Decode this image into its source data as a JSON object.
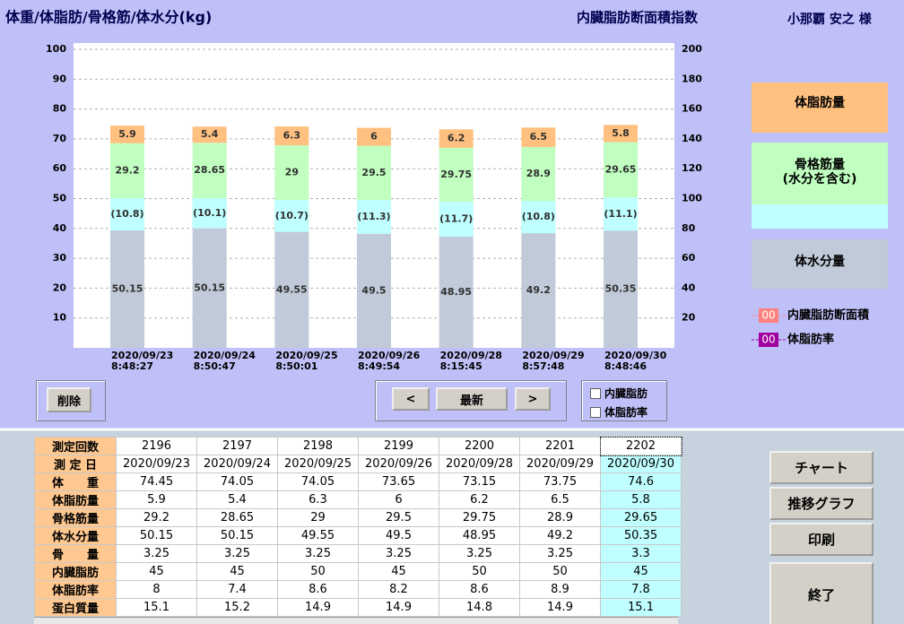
{
  "header": {
    "title": "体重/体脂肪/骨格筋/体水分(kg)",
    "subtitle": "内臓脂肪断面積指数",
    "user": "小那覇 安之 様"
  },
  "chart_data": {
    "type": "bar",
    "stacked": true,
    "categories": [
      "2020/09/23",
      "2020/09/24",
      "2020/09/25",
      "2020/09/26",
      "2020/09/28",
      "2020/09/29",
      "2020/09/30"
    ],
    "times": [
      "8:48:27",
      "8:50:47",
      "8:50:01",
      "8:49:54",
      "8:15:45",
      "8:57:48",
      "8:48:46"
    ],
    "series": [
      {
        "name": "体水分量",
        "color": "#c0cad8",
        "values": [
          50.15,
          50.15,
          49.55,
          49.5,
          48.95,
          49.2,
          50.35
        ]
      },
      {
        "name": "骨格筋量",
        "color": "#c0ffc0",
        "values": [
          29.2,
          28.65,
          29,
          29.5,
          29.75,
          28.9,
          29.65
        ]
      },
      {
        "name": "体脂肪量",
        "color": "#ffc080",
        "values": [
          5.9,
          5.4,
          6.3,
          6,
          6.2,
          6.5,
          5.8
        ]
      }
    ],
    "overlap": {
      "color": "#c0ffff",
      "values": [
        10.8,
        10.1,
        10.7,
        11.3,
        11.7,
        10.8,
        11.1
      ],
      "value_labels": [
        "(10.8)",
        "(10.1)",
        "(10.7)",
        "(11.3)",
        "(11.7)",
        "(10.8)",
        "(11.1)"
      ]
    },
    "legend_note": "(水分を含む)",
    "lines_legend": [
      {
        "name": "内臓脂肪断面積",
        "marker": "00",
        "color": "#ff8080"
      },
      {
        "name": "体脂肪率",
        "marker": "00",
        "color": "#a000a0"
      }
    ],
    "ylim": [
      0,
      100
    ],
    "yticks": [
      10,
      20,
      30,
      40,
      50,
      60,
      70,
      80,
      90,
      100
    ],
    "y2lim": [
      0,
      200
    ],
    "y2ticks": [
      20,
      40,
      60,
      80,
      100,
      120,
      140,
      160,
      180,
      200
    ],
    "grid": true
  },
  "controls": {
    "delete": "削除",
    "prev": "<",
    "latest": "最新",
    "next": ">",
    "check_visceral": "内臓脂肪",
    "check_fat_rate": "体脂肪率"
  },
  "side_buttons": [
    "チャート",
    "推移グラフ",
    "印刷",
    "終了"
  ],
  "table": {
    "rows": [
      {
        "label": "測定回数",
        "cells": [
          2196,
          2197,
          2198,
          2199,
          2200,
          2201,
          2202
        ]
      },
      {
        "label": "測 定 日",
        "cells": [
          "2020/09/23",
          "2020/09/24",
          "2020/09/25",
          "2020/09/26",
          "2020/09/28",
          "2020/09/29",
          "2020/09/30"
        ]
      },
      {
        "label": "体　　重",
        "cells": [
          74.45,
          74.05,
          74.05,
          73.65,
          73.15,
          73.75,
          74.6
        ]
      },
      {
        "label": "体脂肪量",
        "cells": [
          5.9,
          5.4,
          6.3,
          6,
          6.2,
          6.5,
          5.8
        ]
      },
      {
        "label": "骨格筋量",
        "cells": [
          29.2,
          28.65,
          29,
          29.5,
          29.75,
          28.9,
          29.65
        ]
      },
      {
        "label": "体水分量",
        "cells": [
          50.15,
          50.15,
          49.55,
          49.5,
          48.95,
          49.2,
          50.35
        ]
      },
      {
        "label": "骨　　量",
        "cells": [
          3.25,
          3.25,
          3.25,
          3.25,
          3.25,
          3.25,
          3.3
        ]
      },
      {
        "label": "内臓脂肪",
        "cells": [
          45,
          45,
          50,
          45,
          50,
          50,
          45
        ]
      },
      {
        "label": "体脂肪率",
        "cells": [
          8,
          7.4,
          8.6,
          8.2,
          8.6,
          8.9,
          7.8
        ]
      },
      {
        "label": "蛋白質量",
        "cells": [
          15.1,
          15.2,
          14.9,
          14.9,
          14.8,
          14.9,
          15.1
        ]
      }
    ]
  }
}
